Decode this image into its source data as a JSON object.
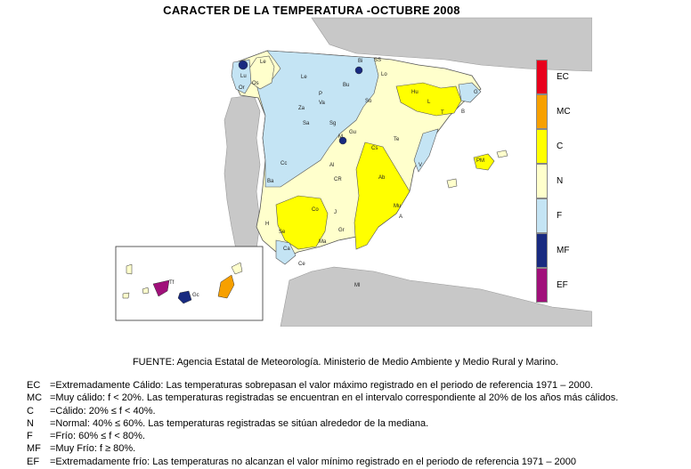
{
  "title": "CARACTER DE LA TEMPERATURA -OCTUBRE  2008",
  "colors": {
    "sea": "#ffffff",
    "land_other": "#c8c8c8",
    "EC": "#e8001c",
    "MC": "#f7a000",
    "C": "#ffff00",
    "N": "#ffffcc",
    "F": "#c4e4f4",
    "MF": "#182a80",
    "EF": "#a0107a"
  },
  "legend": [
    {
      "code": "EC",
      "color": "#e8001c"
    },
    {
      "code": "MC",
      "color": "#f7a000"
    },
    {
      "code": "C",
      "color": "#ffff00"
    },
    {
      "code": "N",
      "color": "#ffffcc"
    },
    {
      "code": "F",
      "color": "#c4e4f4"
    },
    {
      "code": "MF",
      "color": "#182a80"
    },
    {
      "code": "EF",
      "color": "#a0107a"
    }
  ],
  "stations": [
    "Le",
    "Os",
    "Lu",
    "Or",
    "SS",
    "Bi",
    "Le",
    "Bu",
    "Lo",
    "P",
    "Va",
    "Za",
    "Hu",
    "L",
    "G",
    "T",
    "B",
    "So",
    "Sa",
    "Sg",
    "Gu",
    "M",
    "Te",
    "Cs",
    "Cc",
    "V",
    "CR",
    "Al",
    "Ab",
    "PM",
    "Ba",
    "H",
    "Se",
    "Co",
    "J",
    "Gr",
    "Mu",
    "A",
    "Ma",
    "Ca",
    "Ce",
    "Ml",
    "Gc",
    "Tf"
  ],
  "source": "FUENTE: Agencia Estatal de Meteorología. Ministerio de Medio Ambiente y Medio Rural y Marino.",
  "definitions": [
    {
      "code": "EC",
      "text": "=Extremadamente Cálido: Las temperaturas sobrepasan  el valor máximo registrado en el periodo de referencia 1971 – 2000."
    },
    {
      "code": "MC",
      "text": "=Muy cálido: f < 20%. Las temperaturas registradas se encuentran en el intervalo correspondiente al 20% de los años más cálidos."
    },
    {
      "code": "C",
      "text": "=Cálido: 20%  ≤  f < 40%."
    },
    {
      "code": "N",
      "text": "=Normal: 40%  ≤  60%. Las temperaturas registradas se sitúan alrededor de la mediana."
    },
    {
      "code": "F",
      "text": "=Frío: 60%  ≤  f < 80%."
    },
    {
      "code": "MF",
      "text": "=Muy Frío: f  ≥  80%."
    },
    {
      "code": "EF",
      "text": "=Extremadamente frío: Las temperaturas no alcanzan el valor mínimo registrado en el periodo de referencia 1971 – 2000"
    }
  ]
}
